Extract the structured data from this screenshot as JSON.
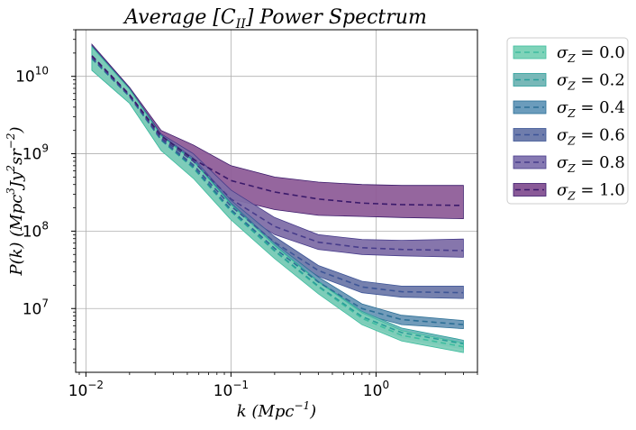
{
  "chart_data": {
    "type": "area",
    "title": "Average [C_II] Power Spectrum",
    "xlabel": "k (Mpc^-1)",
    "ylabel": "P(k) (Mpc^3 Jy^2 sr^-2)",
    "xscale": "log",
    "yscale": "log",
    "xlim": [
      0.0085,
      5.0
    ],
    "ylim": [
      1500000.0,
      40000000000.0
    ],
    "grid": true,
    "legend_position": "outside-right",
    "x_ticks": [
      {
        "value": 0.01,
        "base": "10",
        "exp": "−2"
      },
      {
        "value": 0.1,
        "base": "10",
        "exp": "−1"
      },
      {
        "value": 1.0,
        "base": "10",
        "exp": "0"
      }
    ],
    "y_ticks": [
      {
        "value": 10000000.0,
        "base": "10",
        "exp": "7"
      },
      {
        "value": 100000000.0,
        "base": "10",
        "exp": "8"
      },
      {
        "value": 1000000000.0,
        "base": "10",
        "exp": "9"
      },
      {
        "value": 10000000000.0,
        "base": "10",
        "exp": "10"
      }
    ],
    "k": [
      0.011,
      0.02,
      0.033,
      0.055,
      0.1,
      0.2,
      0.4,
      0.8,
      1.5,
      4.0
    ],
    "series": [
      {
        "name": "σZ = 0.0",
        "color": "#3ebd9f",
        "mean": [
          17000000000.0,
          5500000000.0,
          1500000000.0,
          650000000.0,
          180000000.0,
          55000000.0,
          19000000.0,
          7500000.0,
          4500000.0,
          3200000.0
        ],
        "lower": [
          12000000000.0,
          4500000000.0,
          1100000000.0,
          480000000.0,
          140000000.0,
          44000000.0,
          15500000.0,
          6200000.0,
          3800000.0,
          2700000.0
        ],
        "upper": [
          24000000000.0,
          6800000000.0,
          1700000000.0,
          800000000.0,
          220000000.0,
          65000000.0,
          22000000.0,
          8800000.0,
          5200000.0,
          3600000.0
        ]
      },
      {
        "name": "σZ = 0.2",
        "color": "#2a9e9a",
        "mean": [
          17000000000.0,
          5500000000.0,
          1500000000.0,
          660000000.0,
          182000000.0,
          56000000.0,
          19500000.0,
          7900000.0,
          4900000.0,
          3500000.0
        ],
        "lower": [
          12000000000.0,
          4500000000.0,
          1100000000.0,
          490000000.0,
          142000000.0,
          45000000.0,
          16000000.0,
          6600000.0,
          4200000.0,
          3000000.0
        ],
        "upper": [
          24000000000.0,
          6800000000.0,
          1700000000.0,
          810000000.0,
          222000000.0,
          66000000.0,
          22500000.0,
          9200000.0,
          5600000.0,
          3900000.0
        ]
      },
      {
        "name": "σZ = 0.4",
        "color": "#2c6f96",
        "mean": [
          17000000000.0,
          5500000000.0,
          1520000000.0,
          680000000.0,
          190000000.0,
          60000000.0,
          22000000.0,
          10000000.0,
          7200000.0,
          6200000.0
        ],
        "lower": [
          12000000000.0,
          4500000000.0,
          1120000000.0,
          500000000.0,
          150000000.0,
          49000000.0,
          18500000.0,
          8500000.0,
          6200000.0,
          5500000.0
        ],
        "upper": [
          24000000000.0,
          6800000000.0,
          1720000000.0,
          830000000.0,
          230000000.0,
          70000000.0,
          25500000.0,
          11500000.0,
          8200000.0,
          7000000.0
        ]
      },
      {
        "name": "σZ = 0.6",
        "color": "#3d5597",
        "mean": [
          17500000000.0,
          5600000000.0,
          1550000000.0,
          720000000.0,
          210000000.0,
          72000000.0,
          31000000.0,
          19000000.0,
          16500000.0,
          16000000.0
        ],
        "lower": [
          12500000000.0,
          4600000000.0,
          1150000000.0,
          540000000.0,
          165000000.0,
          59000000.0,
          26000000.0,
          16000000.0,
          14000000.0,
          13500000.0
        ],
        "upper": [
          24500000000.0,
          6900000000.0,
          1750000000.0,
          880000000.0,
          250000000.0,
          85000000.0,
          36000000.0,
          22500000.0,
          19500000.0,
          19500000.0
        ]
      },
      {
        "name": "σZ = 0.8",
        "color": "#473c8b",
        "mean": [
          18000000000.0,
          5700000000.0,
          1600000000.0,
          800000000.0,
          260000000.0,
          115000000.0,
          72000000.0,
          61000000.0,
          58000000.0,
          56000000.0
        ],
        "lower": [
          13000000000.0,
          4700000000.0,
          1200000000.0,
          600000000.0,
          200000000.0,
          90000000.0,
          58000000.0,
          50000000.0,
          48000000.0,
          46000000.0
        ],
        "upper": [
          25000000000.0,
          7000000000.0,
          1800000000.0,
          1000000000.0,
          340000000.0,
          150000000.0,
          90000000.0,
          78000000.0,
          76000000.0,
          79000000.0
        ]
      },
      {
        "name": "σZ = 1.0",
        "color": "#3b1a6b",
        "mean": [
          18500000000.0,
          5800000000.0,
          1700000000.0,
          850000000.0,
          450000000.0,
          320000000.0,
          260000000.0,
          230000000.0,
          220000000.0,
          215000000.0
        ],
        "lower": [
          13500000000.0,
          4800000000.0,
          1250000000.0,
          600000000.0,
          260000000.0,
          190000000.0,
          160000000.0,
          155000000.0,
          150000000.0,
          145000000.0
        ],
        "upper": [
          26000000000.0,
          7200000000.0,
          2000000000.0,
          1300000000.0,
          700000000.0,
          500000000.0,
          430000000.0,
          400000000.0,
          390000000.0,
          390000000.0
        ]
      }
    ]
  },
  "legend_colors": [
    "#7fd3b9",
    "#78b8b8",
    "#6b9cbc",
    "#6f7dac",
    "#8679b2",
    "#8a5a98"
  ],
  "band_colors": [
    "#7ecdb8",
    "#6fb5b7",
    "#6a97b6",
    "#6f7aaa",
    "#7f6fa8",
    "#8f5e99"
  ]
}
